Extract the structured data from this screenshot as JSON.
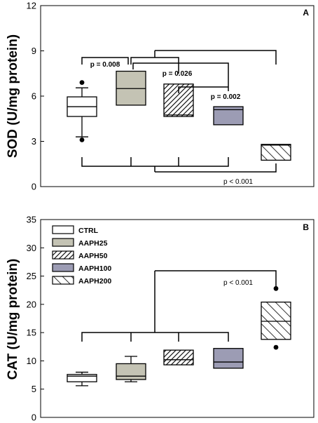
{
  "chart_data": [
    {
      "type": "box",
      "panel": "A",
      "ylabel": "SOD (U/mg protein)",
      "ylim": [
        0,
        12
      ],
      "yticks": [
        "0",
        "3",
        "6",
        "9",
        "12"
      ],
      "groups": [
        {
          "name": "CTRL",
          "pattern": "white",
          "whisker_low": 3.3,
          "q1": 4.65,
          "median": 5.3,
          "q3": 5.95,
          "whisker_high": 6.55,
          "outliers": [
            3.1,
            6.9
          ]
        },
        {
          "name": "AAPH25",
          "pattern": "gray",
          "whisker_low": 5.4,
          "q1": 5.4,
          "median": 6.5,
          "q3": 7.65,
          "whisker_high": 7.65,
          "outliers": []
        },
        {
          "name": "AAPH50",
          "pattern": "diag-dense",
          "whisker_low": 4.65,
          "q1": 4.65,
          "median": 4.75,
          "q3": 6.8,
          "whisker_high": 6.8,
          "outliers": []
        },
        {
          "name": "AAPH100",
          "pattern": "slate",
          "whisker_low": 4.1,
          "q1": 4.1,
          "median": 5.1,
          "q3": 5.3,
          "whisker_high": 5.3,
          "outliers": []
        },
        {
          "name": "AAPH200",
          "pattern": "diag-sparse",
          "whisker_low": 1.75,
          "q1": 1.75,
          "median": 2.75,
          "q3": 2.8,
          "whisker_high": 2.8,
          "outliers": []
        }
      ],
      "annotations": [
        "p = 0.008",
        "p = 0.026",
        "p = 0.002",
        "p < 0.001"
      ]
    },
    {
      "type": "box",
      "panel": "B",
      "ylabel": "CAT (U/mg protein)",
      "ylim": [
        0,
        35
      ],
      "yticks": [
        "0",
        "5",
        "10",
        "15",
        "20",
        "25",
        "30",
        "35"
      ],
      "legend": [
        "CTRL",
        "AAPH25",
        "AAPH50",
        "AAPH100",
        "AAPH200"
      ],
      "legend_position": "top-left",
      "groups": [
        {
          "name": "CTRL",
          "pattern": "white",
          "whisker_low": 5.6,
          "q1": 6.3,
          "median": 7.3,
          "q3": 7.6,
          "whisker_high": 8.0,
          "outliers": []
        },
        {
          "name": "AAPH25",
          "pattern": "gray",
          "whisker_low": 6.3,
          "q1": 6.7,
          "median": 7.3,
          "q3": 9.5,
          "whisker_high": 10.8,
          "outliers": []
        },
        {
          "name": "AAPH50",
          "pattern": "diag-dense",
          "whisker_low": 9.3,
          "q1": 9.3,
          "median": 10.2,
          "q3": 11.9,
          "whisker_high": 11.9,
          "outliers": []
        },
        {
          "name": "AAPH100",
          "pattern": "slate",
          "whisker_low": 8.7,
          "q1": 8.7,
          "median": 9.8,
          "q3": 12.2,
          "whisker_high": 12.2,
          "outliers": []
        },
        {
          "name": "AAPH200",
          "pattern": "diag-sparse",
          "whisker_low": 13.8,
          "q1": 13.8,
          "median": 17.0,
          "q3": 20.4,
          "whisker_high": 20.4,
          "outliers": [
            12.4,
            22.8
          ]
        }
      ],
      "annotations": [
        "p < 0.001"
      ]
    }
  ],
  "colors": {
    "gray_fill": "#c4c3b4",
    "slate_fill": "#9c9cb4",
    "white_fill": "#ffffff",
    "ink": "#000000"
  }
}
